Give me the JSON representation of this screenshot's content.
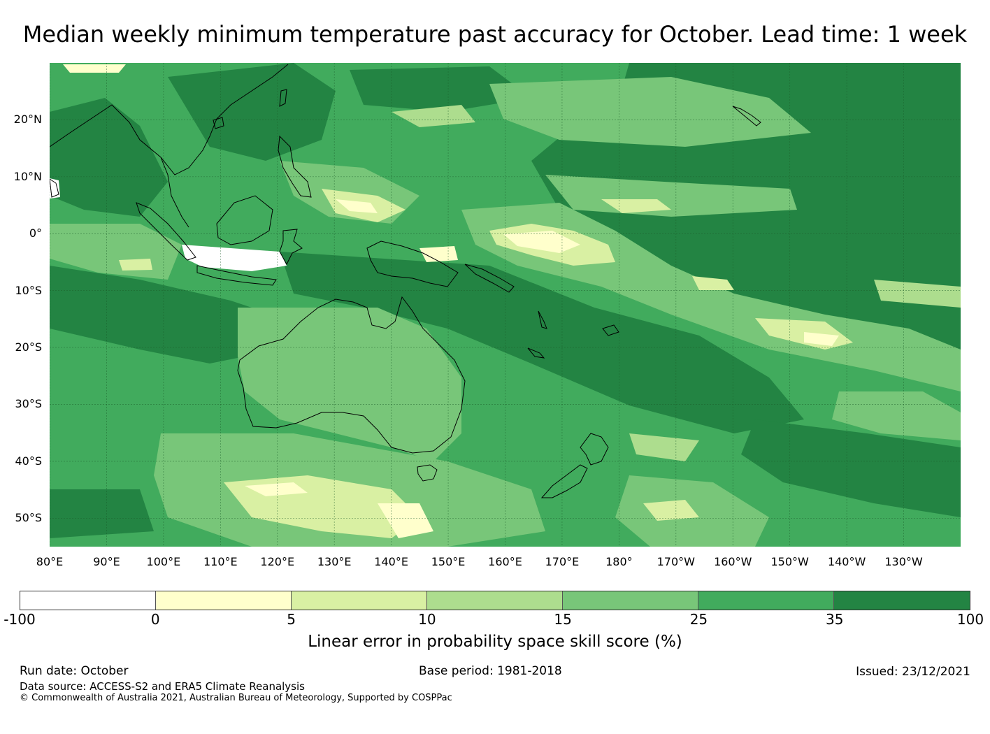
{
  "title": "Median weekly minimum temperature past accuracy for October. Lead time: 1 week",
  "map": {
    "lat_labels": [
      "20°N",
      "10°N",
      "0°",
      "10°S",
      "20°S",
      "30°S",
      "40°S",
      "50°S"
    ],
    "lon_labels": [
      "80°E",
      "90°E",
      "100°E",
      "110°E",
      "120°E",
      "130°E",
      "140°E",
      "150°E",
      "160°E",
      "170°E",
      "180°",
      "170°W",
      "160°W",
      "150°W",
      "140°W",
      "130°W"
    ],
    "lat_values": [
      20,
      10,
      0,
      -10,
      -20,
      -30,
      -40,
      -50
    ],
    "lon_values": [
      80,
      90,
      100,
      110,
      120,
      130,
      140,
      150,
      160,
      170,
      180,
      190,
      200,
      210,
      220,
      230
    ],
    "extent": {
      "lon_min": 80,
      "lon_max": 240,
      "lat_min": -55,
      "lat_max": 30
    }
  },
  "colorbar": {
    "ticks": [
      "-100",
      "0",
      "5",
      "10",
      "15",
      "25",
      "35",
      "100"
    ],
    "colors": [
      "#ffffff",
      "#ffffcc",
      "#d9f0a3",
      "#addd8e",
      "#78c679",
      "#41ab5d",
      "#238443"
    ],
    "label": "Linear error in probability space skill score (%)"
  },
  "footer": {
    "run_date": "Run date: October",
    "base_period": "Base period: 1981-2018",
    "issued": "Issued: 23/12/2021",
    "data_source": "Data source: ACCESS-S2 and ERA5 Climate Reanalysis",
    "copyright": "© Commonwealth of Australia 2021, Australian Bureau of Meteorology, Supported by COSPPac"
  }
}
